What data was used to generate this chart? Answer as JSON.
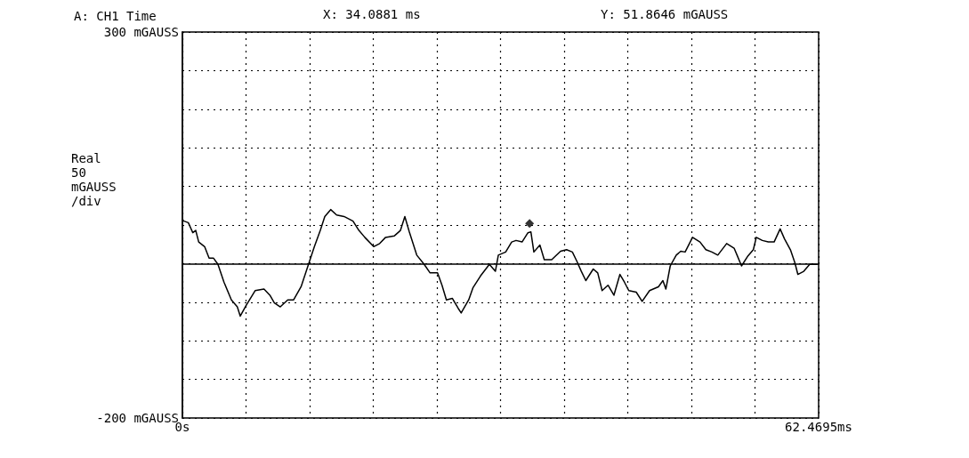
{
  "chart_data": {
    "type": "line",
    "title": "A: CH1 Time",
    "ylabel": "Real 50 mGAUSS /div",
    "annotations": [
      "X: 34.0881 ms",
      "Y: 51.8646 mGAUSS"
    ],
    "xlim": [
      0,
      62.4695
    ],
    "xticks": [
      {
        "value": 0,
        "label": "0s"
      },
      {
        "value": 6.24695,
        "label": null
      },
      {
        "value": 12.4939,
        "label": null
      },
      {
        "value": 18.74085,
        "label": null
      },
      {
        "value": 24.9878,
        "label": null
      },
      {
        "value": 31.23475,
        "label": null
      },
      {
        "value": 37.4817,
        "label": null
      },
      {
        "value": 43.72865,
        "label": null
      },
      {
        "value": 49.9756,
        "label": null
      },
      {
        "value": 56.22255,
        "label": null
      },
      {
        "value": 62.4695,
        "label": "62.4695ms"
      }
    ],
    "ylim": [
      -200,
      300
    ],
    "yticks": [
      {
        "value": -200,
        "label": "-200 mGAUSS"
      },
      {
        "value": -150,
        "label": null
      },
      {
        "value": -100,
        "label": null
      },
      {
        "value": -50,
        "label": null
      },
      {
        "value": 0,
        "label": null
      },
      {
        "value": 50,
        "label": null
      },
      {
        "value": 100,
        "label": null
      },
      {
        "value": 150,
        "label": null
      },
      {
        "value": 200,
        "label": null
      },
      {
        "value": 250,
        "label": null
      },
      {
        "value": 300,
        "label": "300 mGAUSS"
      }
    ],
    "grid": true,
    "marker": "none",
    "line_style": "solid",
    "series": [
      {
        "color": "#000000",
        "x": [
          0,
          0.15,
          0.58,
          1.02,
          1.31,
          1.6,
          2.18,
          2.62,
          3.06,
          3.49,
          4.08,
          4.81,
          5.39,
          5.68,
          6.26,
          7.14,
          8.01,
          8.59,
          9.03,
          9.61,
          10.34,
          10.92,
          11.65,
          12.38,
          12.96,
          13.54,
          13.98,
          14.56,
          15.14,
          15.87,
          16.75,
          17.33,
          17.91,
          18.78,
          19.37,
          19.95,
          20.82,
          21.41,
          21.84,
          22.28,
          23.01,
          23.74,
          24.32,
          25.05,
          25.49,
          25.92,
          26.5,
          27.08,
          27.37,
          28.11,
          28.54,
          29.27,
          30.14,
          30.73,
          31.02,
          31.74,
          32.33,
          32.76,
          33.35,
          33.93,
          34.22,
          34.51,
          35.1,
          35.53,
          36.26,
          37.13,
          37.72,
          38.29,
          38.73,
          39.17,
          39.61,
          40.34,
          40.78,
          41.21,
          41.79,
          42.37,
          42.96,
          43.4,
          43.83,
          44.56,
          45.14,
          45.87,
          46.74,
          47.18,
          47.47,
          47.9,
          48.49,
          48.93,
          49.36,
          50.09,
          50.82,
          51.4,
          51.99,
          52.57,
          53.44,
          54.17,
          54.46,
          54.9,
          55.48,
          56.06,
          56.35,
          56.94,
          57.52,
          58.1,
          58.69,
          59.12,
          59.7,
          60.14,
          60.43,
          61.01,
          61.59,
          62.31
        ],
        "values": [
          57,
          55,
          53,
          40,
          43,
          28,
          22,
          7,
          7,
          -1,
          -24,
          -47,
          -56,
          -68,
          -54,
          -35,
          -33,
          -41,
          -51,
          -56,
          -47,
          -47,
          -30,
          -1,
          22,
          43,
          61,
          70,
          63,
          61,
          55,
          43,
          34,
          22,
          26,
          34,
          36,
          43,
          61,
          41,
          11,
          -1,
          -12,
          -12,
          -28,
          -47,
          -45,
          -58,
          -64,
          -47,
          -31,
          -16,
          -1,
          -10,
          11,
          15,
          28,
          30,
          28,
          40,
          41,
          15,
          24,
          5,
          5,
          16,
          18,
          15,
          3,
          -10,
          -22,
          -7,
          -12,
          -35,
          -28,
          -41,
          -14,
          -24,
          -35,
          -37,
          -49,
          -35,
          -30,
          -22,
          -33,
          -3,
          11,
          16,
          15,
          34,
          28,
          18,
          15,
          11,
          26,
          20,
          11,
          -3,
          9,
          18,
          34,
          30,
          28,
          28,
          45,
          32,
          18,
          1,
          -14,
          -10,
          -1,
          -1
        ]
      },
      {
        "type": "scatter",
        "marker": "diamond",
        "color": "#000000",
        "x": [
          34.0881
        ],
        "values": [
          51.9
        ]
      }
    ]
  }
}
